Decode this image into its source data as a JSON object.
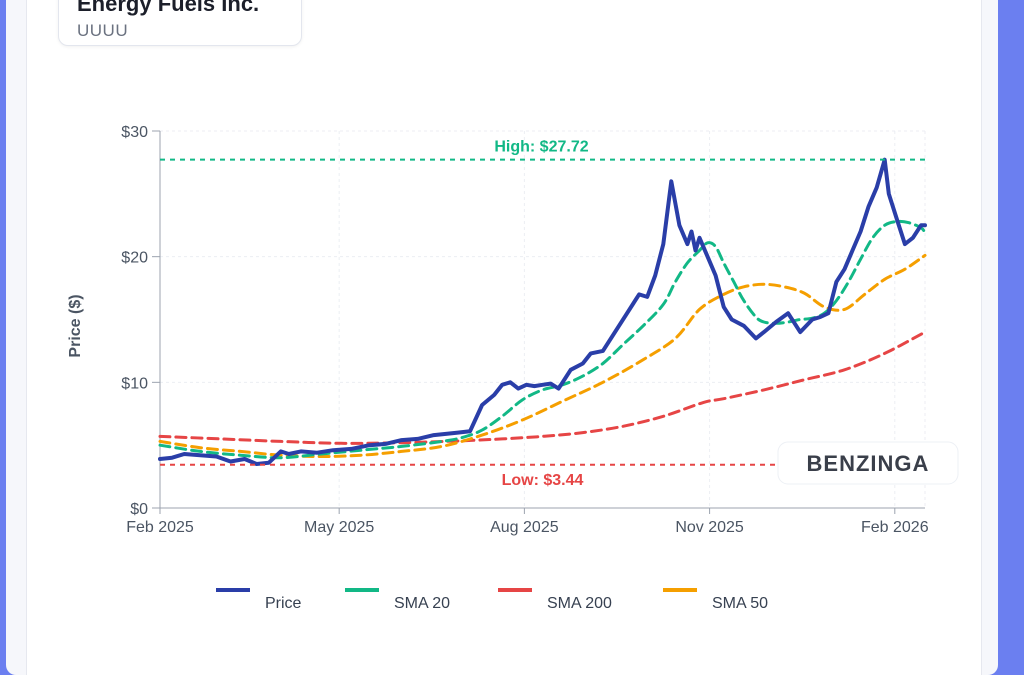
{
  "header": {
    "company_name": "Energy Fuels Inc.",
    "ticker": "UUUU"
  },
  "watermark": {
    "text": "BENZINGA"
  },
  "colors": {
    "price": "#2a3ea8",
    "sma20": "#12b886",
    "sma200": "#e64545",
    "sma50": "#f59f00",
    "high_line": "#12b886",
    "low_line": "#e64545"
  },
  "chart_data": {
    "type": "line",
    "title": "",
    "xlabel": "",
    "ylabel": "Price ($)",
    "ylim": [
      0,
      30
    ],
    "yticks": [
      {
        "value": 0,
        "label": "$0"
      },
      {
        "value": 10,
        "label": "$10"
      },
      {
        "value": 20,
        "label": "$20"
      },
      {
        "value": 30,
        "label": "$30"
      }
    ],
    "xlim": [
      0,
      380
    ],
    "xticks": [
      {
        "value": 0,
        "label": "Feb 2025"
      },
      {
        "value": 89,
        "label": "May 2025"
      },
      {
        "value": 181,
        "label": "Aug 2025"
      },
      {
        "value": 273,
        "label": "Nov 2025"
      },
      {
        "value": 365,
        "label": "Feb 2026"
      }
    ],
    "annotations": {
      "high": {
        "value": 27.72,
        "label": "High: $27.72"
      },
      "low": {
        "value": 3.44,
        "label": "Low: $3.44"
      }
    },
    "legend": [
      "Price",
      "SMA 20",
      "SMA 200",
      "SMA 50"
    ],
    "series": [
      {
        "name": "Price",
        "x": [
          0,
          6,
          12,
          20,
          28,
          35,
          42,
          48,
          54,
          60,
          64,
          70,
          78,
          86,
          95,
          104,
          112,
          120,
          128,
          136,
          142,
          148,
          154,
          160,
          166,
          170,
          174,
          178,
          182,
          186,
          190,
          194,
          198,
          204,
          210,
          214,
          220,
          226,
          232,
          238,
          242,
          246,
          250,
          254,
          258,
          262,
          264,
          266,
          268,
          272,
          276,
          280,
          284,
          290,
          296,
          300,
          306,
          312,
          318,
          324,
          328,
          332,
          336,
          340,
          344,
          348,
          352,
          356,
          360,
          362,
          366,
          370,
          374,
          378,
          380
        ],
        "values": [
          3.9,
          4.0,
          4.3,
          4.2,
          4.1,
          3.7,
          3.9,
          3.5,
          3.6,
          4.5,
          4.3,
          4.5,
          4.4,
          4.6,
          4.7,
          5.0,
          5.1,
          5.4,
          5.5,
          5.8,
          5.9,
          6.0,
          6.1,
          8.2,
          9.0,
          9.8,
          10.0,
          9.5,
          9.8,
          9.7,
          9.8,
          9.9,
          9.5,
          11.0,
          11.5,
          12.3,
          12.5,
          14.0,
          15.5,
          17.0,
          16.8,
          18.5,
          21.0,
          26.0,
          22.5,
          21.0,
          22.0,
          20.5,
          21.5,
          20.0,
          18.5,
          16.0,
          15.0,
          14.5,
          13.5,
          14.0,
          14.8,
          15.5,
          14.0,
          15.0,
          15.2,
          15.5,
          18.0,
          19.0,
          20.5,
          22.0,
          24.0,
          25.5,
          27.72,
          25.0,
          23.0,
          21.0,
          21.5,
          22.5,
          22.5
        ]
      },
      {
        "name": "SMA 20",
        "x": [
          0,
          20,
          40,
          60,
          80,
          100,
          120,
          140,
          150,
          160,
          170,
          180,
          190,
          200,
          210,
          220,
          230,
          240,
          250,
          256,
          262,
          268,
          272,
          276,
          280,
          285,
          290,
          296,
          300,
          306,
          312,
          318,
          324,
          330,
          336,
          342,
          348,
          354,
          360,
          366,
          372,
          378,
          380
        ],
        "values": [
          5.0,
          4.5,
          4.2,
          4.0,
          4.3,
          4.6,
          4.9,
          5.3,
          5.6,
          6.2,
          7.3,
          8.6,
          9.4,
          9.8,
          10.5,
          11.5,
          13.0,
          14.5,
          16.2,
          18.0,
          19.5,
          20.5,
          21.1,
          20.8,
          19.5,
          18.0,
          16.5,
          15.2,
          14.8,
          14.7,
          14.8,
          15.0,
          15.1,
          15.5,
          16.5,
          18.0,
          19.8,
          21.5,
          22.5,
          22.8,
          22.7,
          22.3,
          21.9
        ]
      },
      {
        "name": "SMA 200",
        "x": [
          0,
          30,
          60,
          90,
          120,
          150,
          170,
          190,
          210,
          230,
          250,
          270,
          280,
          300,
          320,
          340,
          360,
          380
        ],
        "values": [
          5.7,
          5.5,
          5.3,
          5.15,
          5.2,
          5.35,
          5.5,
          5.7,
          6.0,
          6.5,
          7.3,
          8.4,
          8.7,
          9.4,
          10.2,
          11.0,
          12.3,
          14.0
        ]
      },
      {
        "name": "SMA 50",
        "x": [
          0,
          20,
          40,
          60,
          80,
          100,
          120,
          140,
          160,
          180,
          200,
          220,
          240,
          256,
          268,
          280,
          290,
          300,
          310,
          320,
          330,
          340,
          350,
          360,
          370,
          380
        ],
        "values": [
          5.3,
          4.8,
          4.5,
          4.2,
          4.1,
          4.2,
          4.5,
          4.9,
          5.8,
          7.0,
          8.5,
          10.0,
          11.8,
          13.5,
          15.8,
          17.0,
          17.6,
          17.8,
          17.6,
          17.1,
          16.0,
          15.8,
          17.0,
          18.2,
          19.0,
          20.1
        ]
      }
    ]
  }
}
